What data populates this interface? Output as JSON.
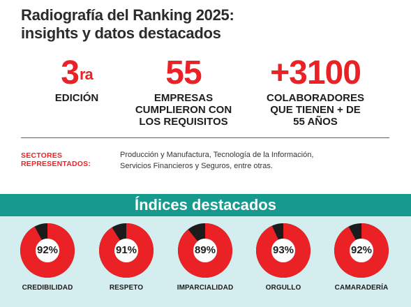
{
  "title": {
    "line1": "Radiografía del Ranking 2025:",
    "line2": "insights y datos destacados"
  },
  "stats": [
    {
      "value": "3",
      "suffix": "ra",
      "label_lines": [
        "EDICIÓN"
      ]
    },
    {
      "value": "55",
      "label_lines": [
        "EMPRESAS",
        "CUMPLIERON CON",
        "LOS REQUISITOS"
      ]
    },
    {
      "value": "+3100",
      "label_lines": [
        "COLABORADORES",
        "QUE TIENEN + DE",
        "55 AÑOS"
      ]
    }
  ],
  "sectors": {
    "label_lines": [
      "SECTORES",
      "REPRESENTADOS:"
    ],
    "text_lines": [
      "Producción y Manufactura, Tecnología de la Información,",
      "Servicios Financieros y Seguros, entre otras."
    ]
  },
  "indices": {
    "title": "Índices destacados",
    "items": [
      {
        "name": "CREDIBILIDAD",
        "value": 92,
        "label": "92%"
      },
      {
        "name": "RESPETO",
        "value": 91,
        "label": "91%"
      },
      {
        "name": "IMPARCIALIDAD",
        "value": 89,
        "label": "89%"
      },
      {
        "name": "ORGULLO",
        "value": 93,
        "label": "93%"
      },
      {
        "name": "CAMARADERÍA",
        "value": 92,
        "label": "92%"
      }
    ]
  },
  "colors": {
    "accent": "#ea2226",
    "remainder": "#1c1c1c",
    "band": "#179a8e",
    "panel": "#d4edef"
  }
}
